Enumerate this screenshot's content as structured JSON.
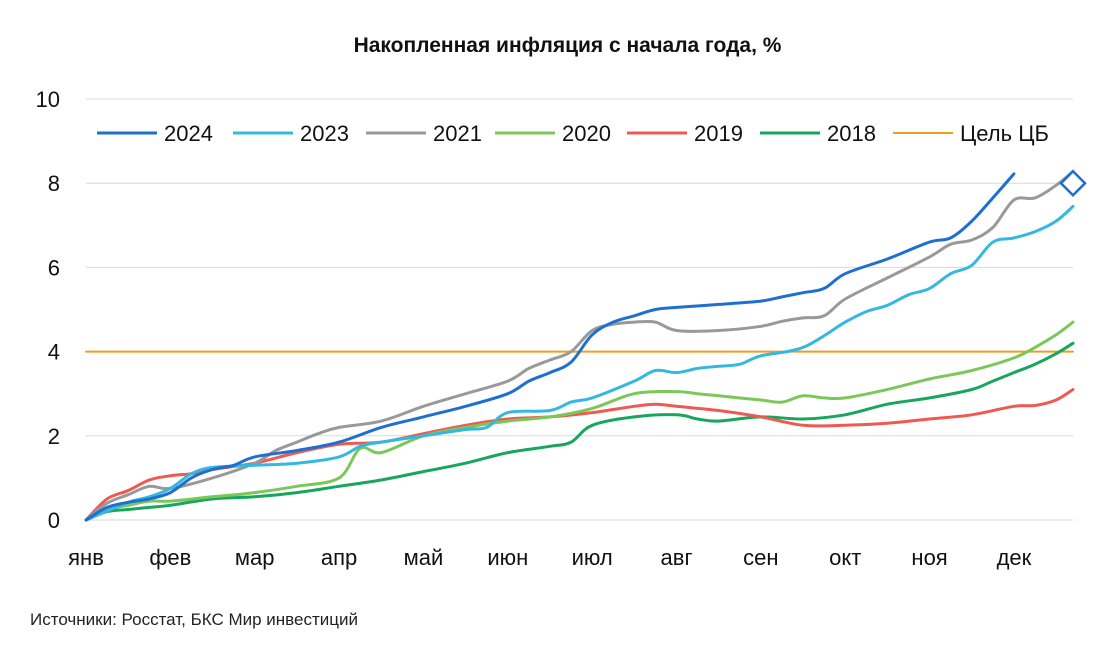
{
  "chart_data": {
    "type": "line",
    "title": "Накопленная инфляция с начала года, %",
    "xlabel": "",
    "ylabel": "",
    "ylim": [
      0,
      10
    ],
    "yticks": [
      0,
      2,
      4,
      6,
      8,
      10
    ],
    "xlim": [
      0,
      11.7
    ],
    "categories": [
      "янв",
      "фев",
      "мар",
      "апр",
      "май",
      "июн",
      "июл",
      "авг",
      "сен",
      "окт",
      "ноя",
      "дек"
    ],
    "grid": true,
    "legend_position": "top",
    "series": [
      {
        "name": "2024",
        "color": "#1f6fd1",
        "x": [
          0,
          0.25,
          0.5,
          0.75,
          1.0,
          1.25,
          1.5,
          1.75,
          2.0,
          2.5,
          3.0,
          3.5,
          4.0,
          4.5,
          5.0,
          5.25,
          5.5,
          5.75,
          6.0,
          6.25,
          6.5,
          6.75,
          7.0,
          7.5,
          8.0,
          8.25,
          8.5,
          8.75,
          9.0,
          9.5,
          10.0,
          10.25,
          10.5,
          10.75,
          11.0
        ],
        "y": [
          0,
          0.3,
          0.42,
          0.5,
          0.65,
          1.0,
          1.2,
          1.3,
          1.5,
          1.65,
          1.85,
          2.2,
          2.45,
          2.7,
          3.0,
          3.3,
          3.5,
          3.75,
          4.4,
          4.7,
          4.85,
          5.0,
          5.05,
          5.12,
          5.2,
          5.3,
          5.4,
          5.5,
          5.85,
          6.2,
          6.6,
          6.7,
          7.1,
          7.65,
          8.22
        ]
      },
      {
        "name": "2023",
        "color": "#35b8e0",
        "x": [
          0,
          0.5,
          0.75,
          1.0,
          1.25,
          1.5,
          2.0,
          2.5,
          3.0,
          3.25,
          3.5,
          4.0,
          4.5,
          4.75,
          5.0,
          5.5,
          5.75,
          6.0,
          6.5,
          6.75,
          7.0,
          7.25,
          7.5,
          7.75,
          8.0,
          8.5,
          9.0,
          9.25,
          9.5,
          9.75,
          10.0,
          10.25,
          10.5,
          10.75,
          11.0,
          11.25,
          11.5,
          11.7
        ],
        "y": [
          0,
          0.42,
          0.55,
          0.75,
          1.1,
          1.25,
          1.3,
          1.35,
          1.5,
          1.75,
          1.85,
          2.0,
          2.15,
          2.2,
          2.55,
          2.6,
          2.8,
          2.9,
          3.3,
          3.55,
          3.5,
          3.6,
          3.65,
          3.7,
          3.9,
          4.1,
          4.7,
          4.95,
          5.1,
          5.35,
          5.5,
          5.85,
          6.05,
          6.6,
          6.7,
          6.85,
          7.1,
          7.45
        ]
      },
      {
        "name": "2021",
        "color": "#999999",
        "x": [
          0,
          0.25,
          0.5,
          0.75,
          1.0,
          1.5,
          2.0,
          2.25,
          2.5,
          2.75,
          3.0,
          3.5,
          4.0,
          4.5,
          5.0,
          5.25,
          5.5,
          5.75,
          6.0,
          6.25,
          6.5,
          6.75,
          7.0,
          7.5,
          8.0,
          8.25,
          8.5,
          8.75,
          9.0,
          9.5,
          10.0,
          10.25,
          10.5,
          10.75,
          11.0,
          11.25,
          11.5,
          11.7
        ],
        "y": [
          0,
          0.4,
          0.6,
          0.8,
          0.75,
          1.0,
          1.35,
          1.65,
          1.85,
          2.05,
          2.2,
          2.35,
          2.7,
          3.0,
          3.3,
          3.6,
          3.8,
          4.0,
          4.5,
          4.65,
          4.7,
          4.7,
          4.5,
          4.5,
          4.6,
          4.72,
          4.8,
          4.85,
          5.25,
          5.75,
          6.25,
          6.55,
          6.65,
          6.95,
          7.6,
          7.65,
          7.95,
          8.28
        ]
      },
      {
        "name": "2020",
        "color": "#7cc75a",
        "x": [
          0,
          0.25,
          0.5,
          0.75,
          1.0,
          1.5,
          2.0,
          2.5,
          3.0,
          3.25,
          3.5,
          4.0,
          4.5,
          5.0,
          5.5,
          6.0,
          6.5,
          7.0,
          7.25,
          7.5,
          8.0,
          8.25,
          8.5,
          8.75,
          9.0,
          9.5,
          10.0,
          10.5,
          11.0,
          11.25,
          11.5,
          11.7
        ],
        "y": [
          0,
          0.25,
          0.35,
          0.45,
          0.45,
          0.55,
          0.65,
          0.8,
          1.0,
          1.7,
          1.6,
          2.0,
          2.2,
          2.35,
          2.45,
          2.65,
          3.0,
          3.05,
          3.0,
          2.95,
          2.85,
          2.8,
          2.95,
          2.9,
          2.9,
          3.1,
          3.35,
          3.55,
          3.85,
          4.1,
          4.4,
          4.7
        ]
      },
      {
        "name": "2019",
        "color": "#ee5a52",
        "x": [
          0,
          0.25,
          0.5,
          0.75,
          1.0,
          1.25,
          1.5,
          2.0,
          2.5,
          3.0,
          3.5,
          4.0,
          4.5,
          5.0,
          5.5,
          6.0,
          6.5,
          6.75,
          7.0,
          7.5,
          8.0,
          8.5,
          9.0,
          9.5,
          10.0,
          10.5,
          11.0,
          11.25,
          11.5,
          11.7
        ],
        "y": [
          0,
          0.5,
          0.7,
          0.95,
          1.05,
          1.1,
          1.2,
          1.35,
          1.6,
          1.8,
          1.85,
          2.05,
          2.25,
          2.4,
          2.45,
          2.55,
          2.7,
          2.75,
          2.7,
          2.6,
          2.45,
          2.25,
          2.25,
          2.3,
          2.4,
          2.5,
          2.7,
          2.72,
          2.85,
          3.1
        ]
      },
      {
        "name": "2018",
        "color": "#17a65b",
        "x": [
          0,
          0.25,
          0.5,
          0.75,
          1.0,
          1.5,
          2.0,
          2.5,
          3.0,
          3.5,
          4.0,
          4.5,
          5.0,
          5.5,
          5.75,
          6.0,
          6.5,
          7.0,
          7.25,
          7.5,
          8.0,
          8.5,
          9.0,
          9.5,
          10.0,
          10.5,
          10.75,
          11.0,
          11.25,
          11.5,
          11.7
        ],
        "y": [
          0,
          0.2,
          0.25,
          0.3,
          0.35,
          0.5,
          0.55,
          0.65,
          0.8,
          0.95,
          1.15,
          1.35,
          1.6,
          1.75,
          1.85,
          2.25,
          2.45,
          2.5,
          2.4,
          2.35,
          2.45,
          2.4,
          2.5,
          2.75,
          2.9,
          3.1,
          3.3,
          3.5,
          3.7,
          3.95,
          4.2
        ]
      },
      {
        "name": "Цель ЦБ",
        "color": "#f39b1b",
        "x": [
          0,
          11.7
        ],
        "y": [
          4,
          4
        ]
      }
    ],
    "markers": [
      {
        "series": "2024",
        "x": 11.7,
        "y": 8.0,
        "shape": "diamond",
        "color": "#1f6fd1"
      }
    ]
  },
  "source_note": "Источники: Росстат, БКС Мир инвестиций"
}
